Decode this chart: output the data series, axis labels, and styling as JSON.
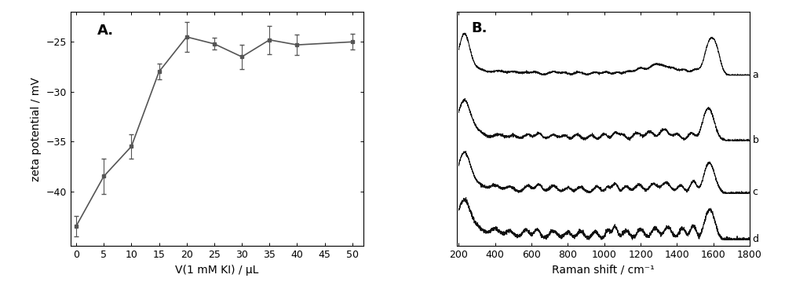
{
  "panel_A": {
    "label": "A.",
    "x": [
      0,
      5,
      10,
      15,
      20,
      25,
      30,
      35,
      40,
      50
    ],
    "y": [
      -43.5,
      -38.5,
      -35.5,
      -28.0,
      -24.5,
      -25.2,
      -26.5,
      -24.8,
      -25.3,
      -25.0
    ],
    "yerr": [
      1.0,
      1.8,
      1.2,
      0.8,
      1.5,
      0.6,
      1.2,
      1.4,
      1.0,
      0.8
    ],
    "xlabel": "V(1 mM KI) / μL",
    "ylabel": "zeta potential / mV",
    "xlim": [
      -1,
      52
    ],
    "ylim": [
      -45.5,
      -22
    ],
    "xticks": [
      0,
      5,
      10,
      15,
      20,
      25,
      30,
      35,
      40,
      45,
      50
    ],
    "yticks": [
      -25,
      -30,
      -35,
      -40
    ],
    "color": "#555555",
    "marker": "s",
    "markersize": 3.5,
    "linewidth": 1.2
  },
  "panel_B": {
    "label": "B.",
    "xlabel": "Raman shift / cm⁻¹",
    "xlim": [
      200,
      1800
    ],
    "xticks": [
      200,
      400,
      600,
      800,
      1000,
      1200,
      1400,
      1600,
      1800
    ],
    "curve_labels": [
      "a",
      "b",
      "c",
      "d"
    ],
    "offsets": [
      0.78,
      0.47,
      0.22,
      0.0
    ],
    "scale": 0.2,
    "color": "#111111",
    "linewidth": 0.7
  },
  "bg_color": "#ffffff",
  "text_color": "#000000"
}
